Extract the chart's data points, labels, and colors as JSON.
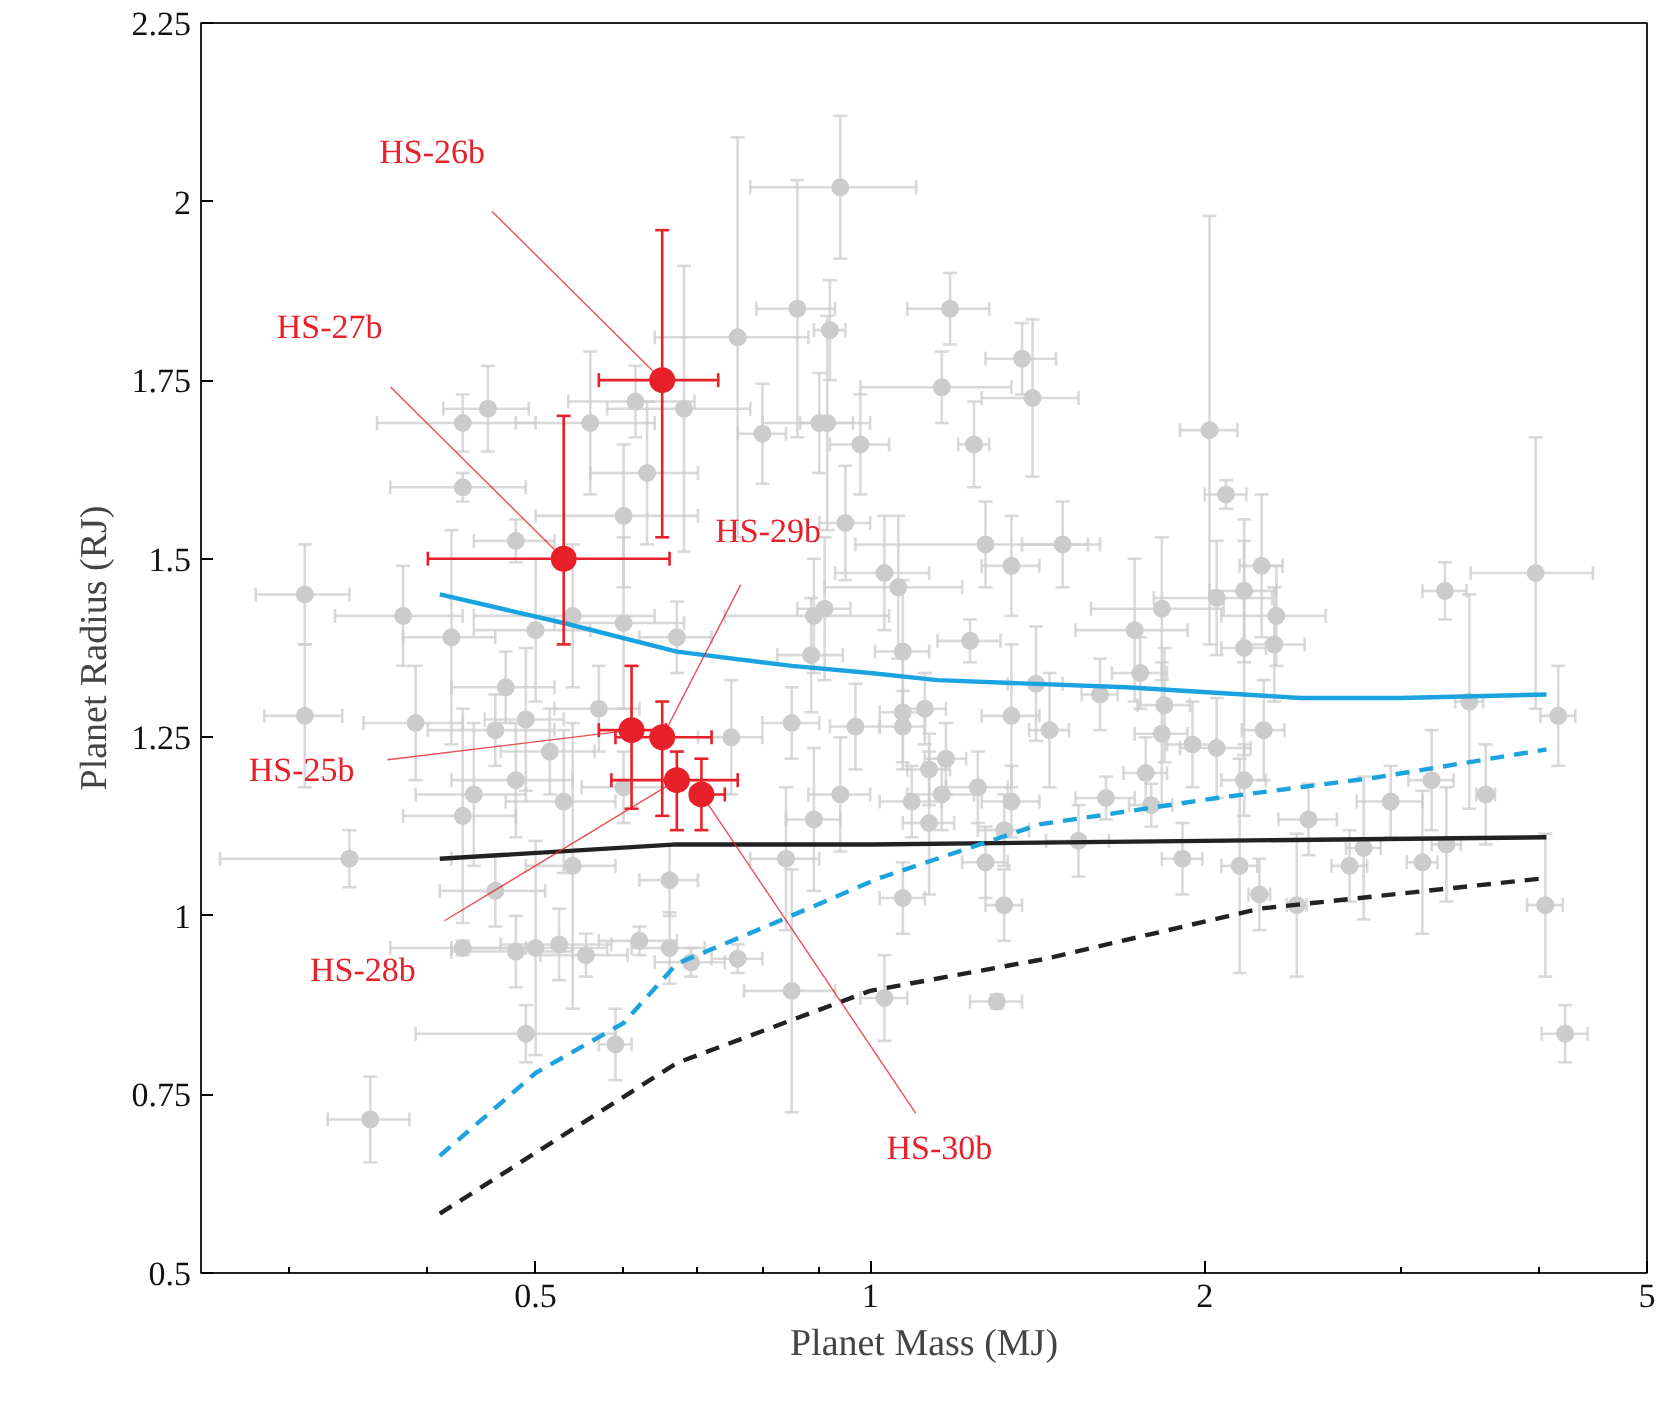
{
  "chart_data": {
    "type": "scatter",
    "xlabel": "Planet Mass (MJ)",
    "ylabel": "Planet Radius (RJ)",
    "log": "x",
    "grid": false,
    "marker": "circle",
    "xlim": [
      0.25,
      5
    ],
    "xticks": [
      {
        "value": 0.3,
        "label": null
      },
      {
        "value": 0.4,
        "label": null
      },
      0.5,
      {
        "value": 0.6,
        "label": null
      },
      {
        "value": 0.7,
        "label": null
      },
      {
        "value": 0.8,
        "label": null
      },
      {
        "value": 0.9,
        "label": null
      },
      1,
      2,
      {
        "value": 3,
        "label": null
      },
      {
        "value": 4,
        "label": null
      },
      5
    ],
    "ylim": [
      0.5,
      2.25
    ],
    "yticks": [
      0.5,
      0.75,
      1,
      1.25,
      1.5,
      1.75,
      2,
      2.25
    ],
    "series": [
      {
        "color": "#cccccc",
        "x": [
          0.94,
          0.86,
          0.76,
          0.92,
          0.615,
          0.68,
          0.453,
          0.43,
          0.56,
          0.8,
          0.9,
          0.915,
          0.98,
          0.63,
          0.43,
          0.6,
          0.95,
          0.48,
          0.31,
          1.03,
          1.06,
          0.38,
          0.42,
          0.5,
          0.54,
          0.6,
          0.67,
          0.89,
          0.91,
          1.18,
          1.16,
          1.37,
          1.4,
          1.24,
          2.02,
          2.09,
          1.27,
          1.34,
          1.49,
          2.25,
          3.29,
          3.97,
          1.83,
          1.73,
          2.05,
          2.17,
          2.32,
          2.31,
          2.17,
          1.23,
          0.31,
          0.39,
          0.34,
          0.43,
          0.44,
          0.46,
          0.47,
          0.49,
          0.48,
          0.515,
          0.53,
          0.54,
          0.46,
          0.43,
          0.48,
          0.5,
          0.525,
          0.555,
          0.62,
          0.66,
          0.69,
          0.76,
          0.66,
          0.49,
          0.59,
          0.355,
          0.85,
          1.03,
          0.75,
          0.57,
          0.6,
          0.85,
          0.97,
          0.885,
          1.07,
          0.84,
          0.89,
          1.07,
          1.13,
          0.94,
          1.07,
          1.75,
          1.41,
          1.34,
          1.45,
          1.61,
          1.84,
          1.95,
          1.83,
          2.05,
          2.26,
          3.46,
          4.16,
          2.17,
          1.77,
          1.63,
          1.79,
          2.48,
          2.94,
          3.2,
          3.58,
          2.78,
          3.14,
          3.3,
          2.7,
          2.15,
          1.91,
          2.24,
          2.42,
          4.05,
          4.22,
          1.3,
          1.32,
          1.27,
          1.34,
          1.25,
          1.16,
          1.32,
          1.54,
          1.09,
          1.13,
          1.17,
          1.07,
          1.12
        ],
        "values": [
          2.02,
          1.85,
          1.81,
          1.82,
          1.72,
          1.71,
          1.71,
          1.69,
          1.69,
          1.675,
          1.69,
          1.69,
          1.66,
          1.62,
          1.6,
          1.56,
          1.55,
          1.525,
          1.45,
          1.48,
          1.46,
          1.42,
          1.39,
          1.4,
          1.42,
          1.41,
          1.39,
          1.42,
          1.43,
          1.85,
          1.74,
          1.78,
          1.725,
          1.66,
          1.68,
          1.59,
          1.52,
          1.49,
          1.52,
          1.49,
          1.455,
          1.48,
          1.43,
          1.4,
          1.445,
          1.455,
          1.42,
          1.38,
          1.375,
          1.385,
          1.28,
          1.27,
          1.08,
          1.14,
          1.17,
          1.26,
          1.32,
          1.275,
          1.19,
          1.23,
          1.16,
          1.07,
          1.035,
          0.955,
          0.95,
          0.955,
          0.96,
          0.945,
          0.965,
          0.955,
          0.935,
          0.94,
          1.05,
          0.835,
          0.82,
          0.715,
          0.895,
          0.885,
          1.25,
          1.29,
          1.18,
          1.27,
          1.265,
          1.365,
          1.37,
          1.08,
          1.135,
          1.025,
          1.13,
          1.17,
          1.285,
          1.34,
          1.325,
          1.28,
          1.26,
          1.31,
          1.295,
          1.24,
          1.255,
          1.235,
          1.26,
          1.3,
          1.28,
          1.19,
          1.2,
          1.165,
          1.155,
          1.135,
          1.16,
          1.19,
          1.17,
          1.095,
          1.075,
          1.1,
          1.07,
          1.07,
          1.08,
          1.03,
          1.015,
          1.015,
          0.835,
          0.88,
          1.015,
          1.075,
          1.16,
          1.18,
          1.17,
          1.12,
          1.105,
          1.16,
          1.205,
          1.22,
          1.265,
          1.29
        ],
        "errors": [
          0.1,
          0.18,
          0.28,
          0.07,
          0.05,
          0.2,
          0.06,
          0.04,
          0.1,
          0.07,
          0.07,
          0.15,
          0.07,
          0.1,
          0.02,
          0.1,
          0.08,
          0.03,
          0.07,
          0.08,
          0.1,
          0.07,
          0.15,
          0.1,
          0.1,
          0.12,
          0.05,
          0.08,
          0.1,
          0.05,
          0.05,
          0.05,
          0.11,
          0.06,
          0.3,
          0.02,
          0.06,
          0.07,
          0.06,
          0.1,
          0.04,
          0.19,
          0.1,
          0.1,
          0.08,
          0.1,
          0.07,
          0.08,
          0.15,
          0.03,
          0.1,
          0.08,
          0.04,
          0.15,
          0.1,
          0.05,
          0.05,
          0.1,
          0.08,
          0.06,
          0.1,
          0.2,
          0.05,
          0.01,
          0.05,
          0.15,
          0.05,
          0.03,
          0.02,
          0.05,
          0.02,
          0.02,
          0.05,
          0.04,
          0.05,
          0.06,
          0.17,
          0.06,
          0.08,
          0.06,
          0.05,
          0.05,
          0.06,
          0.08,
          0.1,
          0.1,
          0.1,
          0.05,
          0.1,
          0.08,
          0.08,
          0.05,
          0.08,
          0.1,
          0.08,
          0.05,
          0.08,
          0.06,
          0.1,
          0.07,
          0.07,
          0.15,
          0.07,
          0.05,
          0.05,
          0.03,
          0.03,
          0.05,
          0.05,
          0.07,
          0.07,
          0.1,
          0.1,
          0.08,
          0.05,
          0.15,
          0.05,
          0.05,
          0.1,
          0.1,
          0.04,
          0.01,
          0.05,
          0.05,
          0.05,
          0.05,
          0.05,
          0.05,
          0.05,
          0.05,
          0.05,
          0.05,
          0.05,
          0.05
        ],
        "xerrors": [
          0.16,
          0.07,
          0.12,
          0.03,
          0.08,
          0.1,
          0.04,
          0.07,
          0.08,
          0.04,
          0.1,
          0.05,
          0.06,
          0.07,
          0.06,
          0.1,
          0.05,
          0.04,
          0.03,
          0.1,
          0.15,
          0.05,
          0.04,
          0.06,
          0.1,
          0.08,
          0.05,
          0.15,
          0.05,
          0.1,
          0.18,
          0.1,
          0.14,
          0.04,
          0.12,
          0.09,
          0.3,
          0.08,
          0.12,
          0.1,
          0.15,
          0.5,
          0.25,
          0.2,
          0.25,
          0.15,
          0.25,
          0.15,
          0.1,
          0.08,
          0.025,
          0.04,
          0.08,
          0.05,
          0.05,
          0.06,
          0.05,
          0.04,
          0.06,
          0.05,
          0.06,
          0.05,
          0.05,
          0.06,
          0.06,
          0.08,
          0.06,
          0.05,
          0.05,
          0.05,
          0.05,
          0.04,
          0.04,
          0.1,
          0.02,
          0.03,
          0.08,
          0.05,
          0.05,
          0.05,
          0.05,
          0.05,
          0.05,
          0.06,
          0.06,
          0.06,
          0.05,
          0.05,
          0.06,
          0.06,
          0.05,
          0.1,
          0.08,
          0.08,
          0.06,
          0.06,
          0.1,
          0.1,
          0.1,
          0.15,
          0.1,
          0.1,
          0.15,
          0.1,
          0.08,
          0.1,
          0.08,
          0.15,
          0.2,
          0.15,
          0.07,
          0.1,
          0.1,
          0.1,
          0.1,
          0.08,
          0.08,
          0.05,
          0.05,
          0.15,
          0.2,
          0.07,
          0.05,
          0.06,
          0.08,
          0.08,
          0.08,
          0.07,
          0.1,
          0.07,
          0.05,
          0.05,
          0.05,
          0.05
        ]
      },
      {
        "type": "line",
        "marker": "none",
        "color": "#1ba3e0",
        "line_style": "solid",
        "x": [
          0.41,
          0.53,
          0.67,
          0.85,
          1,
          1.15,
          1.7,
          2.44,
          3,
          4.06
        ],
        "values": [
          1.45,
          1.41,
          1.37,
          1.35,
          1.34,
          1.33,
          1.32,
          1.305,
          1.305,
          1.31
        ]
      },
      {
        "type": "line",
        "marker": "none",
        "color": "#222222",
        "line_style": "solid",
        "x": [
          0.41,
          0.67,
          1,
          2,
          4.06
        ],
        "values": [
          1.08,
          1.1,
          1.1,
          1.105,
          1.11
        ]
      },
      {
        "type": "line",
        "marker": "none",
        "color": "#1ba3e0",
        "line_style": "dashed",
        "x": [
          0.41,
          0.5,
          0.6,
          0.67,
          0.82,
          1.02,
          1.42,
          2.03,
          2.86,
          4.06
        ],
        "values": [
          0.664,
          0.78,
          0.85,
          0.933,
          0.99,
          1.053,
          1.128,
          1.164,
          1.194,
          1.233
        ]
      },
      {
        "type": "line",
        "marker": "none",
        "color": "#222222",
        "line_style": "dashed",
        "x": [
          0.41,
          0.67,
          1,
          1.44,
          2.24,
          4.06
        ],
        "values": [
          0.583,
          0.794,
          0.895,
          0.94,
          1.01,
          1.053
        ]
      },
      {
        "color": "#e8202a",
        "x": [
          0.53,
          0.65,
          0.61,
          0.65,
          0.67,
          0.705
        ],
        "values": [
          1.5,
          1.75,
          1.26,
          1.25,
          1.19,
          1.17
        ],
        "errors": [
          [
            1.38,
            1.7
          ],
          [
            1.53,
            1.96
          ],
          [
            1.15,
            1.35
          ],
          [
            1.14,
            1.3
          ],
          [
            1.12,
            1.23
          ],
          [
            1.12,
            1.22
          ]
        ],
        "xerrors": [
          [
            0.4,
            0.66
          ],
          [
            0.57,
            0.73
          ],
          [
            0.57,
            0.655
          ],
          [
            0.59,
            0.72
          ],
          [
            0.585,
            0.76
          ],
          [
            0.69,
            0.74
          ]
        ]
      }
    ],
    "annotations": [
      {
        "text": "HS-26b",
        "x": 0.65,
        "y": 1.75
      },
      {
        "text": "HS-27b",
        "x": 0.53,
        "y": 1.5
      },
      {
        "text": "HS-29b",
        "x": 0.65,
        "y": 1.25
      },
      {
        "text": "HS-25b",
        "x": 0.61,
        "y": 1.26
      },
      {
        "text": "HS-28b",
        "x": 0.67,
        "y": 1.19
      },
      {
        "text": "HS-30b",
        "x": 0.705,
        "y": 1.17
      }
    ]
  }
}
